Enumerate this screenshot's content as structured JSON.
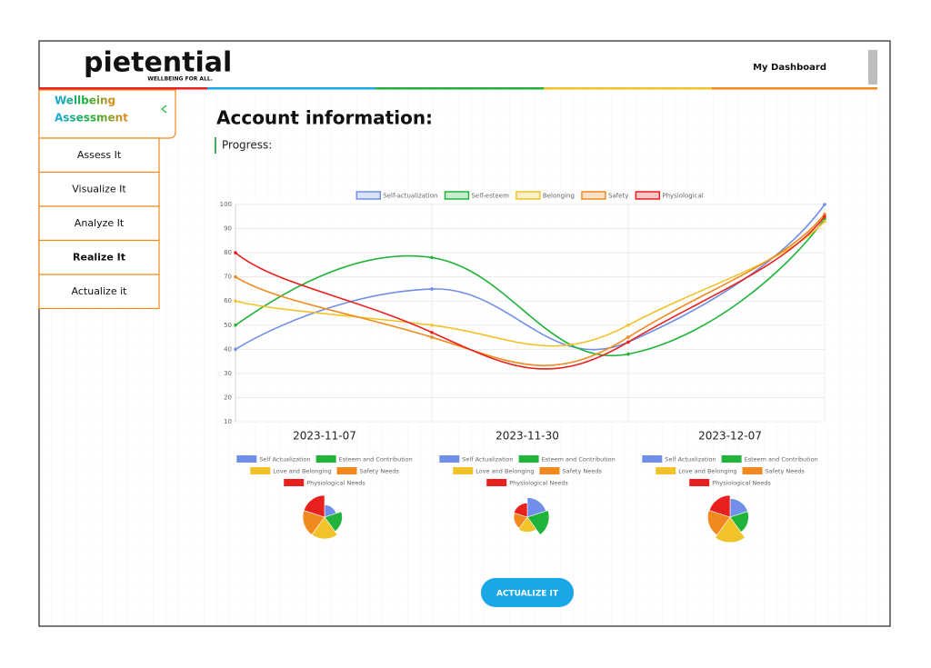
{
  "header": {
    "logo": "pietential",
    "tagline": "WELLBEING FOR ALL.",
    "nav": "My Dashboard"
  },
  "sidebar": {
    "title_lines": [
      "Wellbeing",
      "Assessment"
    ],
    "items": [
      "Assess It",
      "Visualize It",
      "Analyze It",
      "Realize It",
      "Actualize it"
    ]
  },
  "main": {
    "heading": "Account information:",
    "subheading": "Progress:",
    "button": "ACTUALIZE IT"
  },
  "chart_data": [
    {
      "type": "line",
      "categories": [
        null,
        null,
        null,
        null
      ],
      "series": [
        {
          "name": "Self-actualization",
          "color": "#6f8fe8",
          "values": [
            40,
            65,
            43,
            100
          ]
        },
        {
          "name": "Self-esteem",
          "color": "#22b33a",
          "values": [
            50,
            78,
            38,
            94
          ]
        },
        {
          "name": "Belonging",
          "color": "#f2c22a",
          "values": [
            60,
            50,
            50,
            93
          ]
        },
        {
          "name": "Safety",
          "color": "#f08a1e",
          "values": [
            70,
            45,
            45,
            96
          ]
        },
        {
          "name": "Physiological",
          "color": "#e8201e",
          "values": [
            80,
            47,
            43,
            95
          ]
        }
      ],
      "ylim": [
        10,
        100
      ],
      "yticks": [
        10,
        20,
        30,
        40,
        50,
        60,
        70,
        80,
        90,
        100
      ],
      "grid": true,
      "legend": "top"
    },
    {
      "type": "polarArea",
      "title": "2023-11-07",
      "categories": [
        "Self Actualization",
        "Esteem and Contribution",
        "Love and Belonging",
        "Safety Needs",
        "Physiological Needs"
      ],
      "colors": [
        "#6f8fe8",
        "#22b33a",
        "#f2c22a",
        "#f08a1e",
        "#e8201e"
      ],
      "values": [
        45,
        65,
        80,
        80,
        80
      ]
    },
    {
      "type": "polarArea",
      "title": "2023-11-30",
      "categories": [
        "Self Actualization",
        "Esteem and Contribution",
        "Love and Belonging",
        "Safety Needs",
        "Physiological Needs"
      ],
      "colors": [
        "#6f8fe8",
        "#22b33a",
        "#f2c22a",
        "#f08a1e",
        "#e8201e"
      ],
      "values": [
        72,
        80,
        55,
        50,
        52
      ]
    },
    {
      "type": "polarArea",
      "title": "2023-12-07",
      "categories": [
        "Self Actualization",
        "Esteem and Contribution",
        "Love and Belonging",
        "Safety Needs",
        "Physiological Needs"
      ],
      "colors": [
        "#6f8fe8",
        "#22b33a",
        "#f2c22a",
        "#f08a1e",
        "#e8201e"
      ],
      "values": [
        68,
        68,
        93,
        82,
        80
      ]
    }
  ]
}
